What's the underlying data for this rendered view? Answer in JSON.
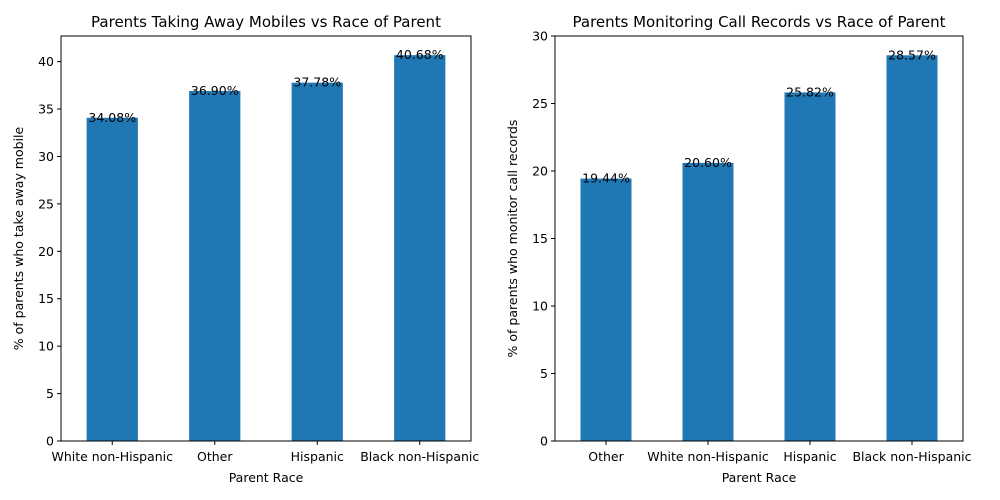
{
  "chart_data": [
    {
      "type": "bar",
      "title": "Parents Taking Away Mobiles vs Race of Parent",
      "xlabel": "Parent Race",
      "ylabel": "% of parents who take away mobile",
      "categories": [
        "White non-Hispanic",
        "Other",
        "Hispanic",
        "Black non-Hispanic"
      ],
      "values": [
        34.08,
        36.9,
        37.78,
        40.68
      ],
      "data_labels": [
        "34.08%",
        "36.90%",
        "37.78%",
        "40.68%"
      ],
      "ylim": [
        0,
        42.7
      ],
      "yticks": [
        0,
        5,
        10,
        15,
        20,
        25,
        30,
        35,
        40
      ],
      "bar_color": "#1f77b4",
      "grid": false,
      "legend": "none"
    },
    {
      "type": "bar",
      "title": "Parents Monitoring Call Records vs Race of Parent",
      "xlabel": "Parent Race",
      "ylabel": "% of parents who monitor call records",
      "categories": [
        "Other",
        "White non-Hispanic",
        "Hispanic",
        "Black non-Hispanic"
      ],
      "values": [
        19.44,
        20.6,
        25.82,
        28.57
      ],
      "data_labels": [
        "19.44%",
        "20.60%",
        "25.82%",
        "28.57%"
      ],
      "ylim": [
        0,
        30
      ],
      "yticks": [
        0,
        5,
        10,
        15,
        20,
        25,
        30
      ],
      "bar_color": "#1f77b4",
      "grid": false,
      "legend": "none"
    }
  ]
}
